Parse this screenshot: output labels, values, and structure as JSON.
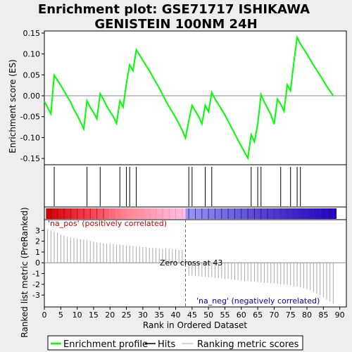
{
  "chart_data": {
    "type": "line",
    "title_line1": "Enrichment plot: GSE71717 ISHIKAWA",
    "title_line2": "GENISTEIN 100NM 24H",
    "xlabel": "Rank in Ordered Dataset",
    "ylabel_top": "Enrichment score (ES)",
    "ylabel_bottom": "Ranked list metric (PreRanked)",
    "xlim": [
      0,
      92
    ],
    "xticks": [
      0,
      5,
      10,
      15,
      20,
      25,
      30,
      35,
      40,
      45,
      50,
      55,
      60,
      65,
      70,
      75,
      80,
      85,
      90
    ],
    "es_ylim": [
      -0.165,
      0.155
    ],
    "es_yticks": [
      "0.15",
      "0.10",
      "0.05",
      "0.00",
      "-0.05",
      "-0.10",
      "-0.15"
    ],
    "es_ytick_values": [
      0.15,
      0.1,
      0.05,
      0.0,
      -0.05,
      -0.1,
      -0.15
    ],
    "metric_ylim": [
      -4.1,
      4.0
    ],
    "metric_yticks": [
      3,
      2,
      1,
      0,
      -1,
      -2,
      -3
    ],
    "es_curve": {
      "x": [
        0,
        2,
        3,
        5,
        7,
        8,
        9,
        10,
        12,
        13,
        14,
        15,
        16,
        17,
        18,
        19,
        21,
        22,
        23,
        24,
        25,
        26,
        27,
        28,
        29,
        30,
        31,
        32,
        33,
        34,
        35,
        36,
        37,
        38,
        40,
        42,
        43,
        44,
        45,
        47,
        48,
        49,
        50,
        51,
        52,
        53,
        55,
        57,
        59,
        61,
        62,
        63,
        64,
        65,
        66,
        67,
        68,
        69,
        70,
        71,
        72,
        73,
        74,
        75,
        76,
        77,
        78,
        79,
        80,
        82,
        84,
        86,
        88
      ],
      "y": [
        -0.013,
        -0.043,
        0.049,
        0.025,
        -0.002,
        -0.015,
        -0.033,
        -0.046,
        -0.079,
        -0.012,
        -0.028,
        -0.04,
        -0.055,
        0.005,
        -0.008,
        -0.025,
        -0.05,
        -0.066,
        -0.012,
        -0.027,
        0.03,
        0.074,
        0.06,
        0.11,
        0.098,
        0.085,
        0.072,
        0.06,
        0.046,
        0.032,
        0.019,
        0.003,
        -0.012,
        -0.026,
        -0.052,
        -0.082,
        -0.101,
        -0.06,
        -0.023,
        -0.05,
        -0.067,
        -0.023,
        -0.038,
        0.008,
        -0.008,
        -0.02,
        -0.046,
        -0.076,
        -0.106,
        -0.135,
        -0.149,
        -0.093,
        -0.11,
        -0.068,
        0.003,
        -0.015,
        -0.03,
        -0.045,
        -0.068,
        -0.008,
        -0.02,
        -0.037,
        0.026,
        0.012,
        0.08,
        0.14,
        0.124,
        0.112,
        0.1,
        0.073,
        0.049,
        0.023,
        0.0
      ]
    },
    "hits": [
      3,
      13,
      17,
      23,
      25,
      26,
      28,
      44,
      45,
      49,
      51,
      63,
      65,
      66,
      72,
      75,
      77,
      78
    ],
    "zero_cross": 43,
    "zero_cross_label": "Zero cross at 43",
    "pos_label": "'na_pos' (positively correlated)",
    "neg_label": "'na_neg' (negatively correlated)",
    "metric_bars": [
      {
        "x": 1,
        "y": 3.1
      },
      {
        "x": 2,
        "y": 3.0
      },
      {
        "x": 3,
        "y": 2.9
      },
      {
        "x": 4,
        "y": 2.8
      },
      {
        "x": 5,
        "y": 2.6
      },
      {
        "x": 6,
        "y": 2.5
      },
      {
        "x": 7,
        "y": 2.4
      },
      {
        "x": 8,
        "y": 2.35
      },
      {
        "x": 9,
        "y": 2.3
      },
      {
        "x": 10,
        "y": 2.25
      },
      {
        "x": 11,
        "y": 2.2
      },
      {
        "x": 12,
        "y": 2.15
      },
      {
        "x": 13,
        "y": 2.1
      },
      {
        "x": 14,
        "y": 2.0
      },
      {
        "x": 15,
        "y": 1.95
      },
      {
        "x": 16,
        "y": 1.9
      },
      {
        "x": 17,
        "y": 1.85
      },
      {
        "x": 18,
        "y": 1.8
      },
      {
        "x": 19,
        "y": 1.8
      },
      {
        "x": 20,
        "y": 1.75
      },
      {
        "x": 21,
        "y": 1.75
      },
      {
        "x": 22,
        "y": 1.7
      },
      {
        "x": 23,
        "y": 1.7
      },
      {
        "x": 24,
        "y": 1.65
      },
      {
        "x": 25,
        "y": 1.6
      },
      {
        "x": 26,
        "y": 1.6
      },
      {
        "x": 27,
        "y": 1.55
      },
      {
        "x": 28,
        "y": 1.5
      },
      {
        "x": 29,
        "y": 1.5
      },
      {
        "x": 30,
        "y": 1.45
      },
      {
        "x": 31,
        "y": 1.45
      },
      {
        "x": 32,
        "y": 1.4
      },
      {
        "x": 33,
        "y": 1.4
      },
      {
        "x": 34,
        "y": 1.35
      },
      {
        "x": 35,
        "y": 1.35
      },
      {
        "x": 36,
        "y": 1.3
      },
      {
        "x": 37,
        "y": 1.3
      },
      {
        "x": 38,
        "y": 1.3
      },
      {
        "x": 39,
        "y": 1.25
      },
      {
        "x": 40,
        "y": 1.25
      },
      {
        "x": 41,
        "y": 1.2
      },
      {
        "x": 42,
        "y": 1.2
      },
      {
        "x": 44,
        "y": -1.2
      },
      {
        "x": 45,
        "y": -1.2
      },
      {
        "x": 46,
        "y": -1.25
      },
      {
        "x": 47,
        "y": -1.25
      },
      {
        "x": 48,
        "y": -1.3
      },
      {
        "x": 49,
        "y": -1.3
      },
      {
        "x": 50,
        "y": -1.35
      },
      {
        "x": 51,
        "y": -1.35
      },
      {
        "x": 52,
        "y": -1.4
      },
      {
        "x": 53,
        "y": -1.4
      },
      {
        "x": 54,
        "y": -1.45
      },
      {
        "x": 55,
        "y": -1.5
      },
      {
        "x": 56,
        "y": -1.5
      },
      {
        "x": 57,
        "y": -1.55
      },
      {
        "x": 58,
        "y": -1.6
      },
      {
        "x": 59,
        "y": -1.6
      },
      {
        "x": 60,
        "y": -1.65
      },
      {
        "x": 61,
        "y": -1.7
      },
      {
        "x": 62,
        "y": -1.7
      },
      {
        "x": 63,
        "y": -1.75
      },
      {
        "x": 64,
        "y": -1.75
      },
      {
        "x": 65,
        "y": -1.8
      },
      {
        "x": 66,
        "y": -1.8
      },
      {
        "x": 67,
        "y": -1.85
      },
      {
        "x": 68,
        "y": -1.85
      },
      {
        "x": 69,
        "y": -1.9
      },
      {
        "x": 70,
        "y": -1.9
      },
      {
        "x": 71,
        "y": -1.95
      },
      {
        "x": 72,
        "y": -2.0
      },
      {
        "x": 73,
        "y": -2.0
      },
      {
        "x": 74,
        "y": -2.05
      },
      {
        "x": 75,
        "y": -2.1
      },
      {
        "x": 76,
        "y": -2.15
      },
      {
        "x": 77,
        "y": -2.2
      },
      {
        "x": 78,
        "y": -2.25
      },
      {
        "x": 79,
        "y": -2.35
      },
      {
        "x": 80,
        "y": -2.45
      },
      {
        "x": 81,
        "y": -2.55
      },
      {
        "x": 82,
        "y": -2.7
      },
      {
        "x": 83,
        "y": -2.85
      },
      {
        "x": 84,
        "y": -3.0
      },
      {
        "x": 85,
        "y": -3.2
      },
      {
        "x": 86,
        "y": -3.4
      },
      {
        "x": 87,
        "y": -3.6
      },
      {
        "x": 88,
        "y": -3.8
      }
    ],
    "legend": [
      "Enrichment profile",
      "Hits",
      "Ranking metric scores"
    ],
    "colors": {
      "es_line": "#00ff00",
      "hits": "#000000",
      "metric": "#aaaaaa",
      "pos_text": "#cc0000",
      "neg_text": "#0000cc",
      "bar_red": "#cc0000",
      "bar_pink": "#ffc0e8",
      "bar_blue": "#2200bb",
      "background": "#ffffff",
      "page": "#eeeeee"
    }
  }
}
